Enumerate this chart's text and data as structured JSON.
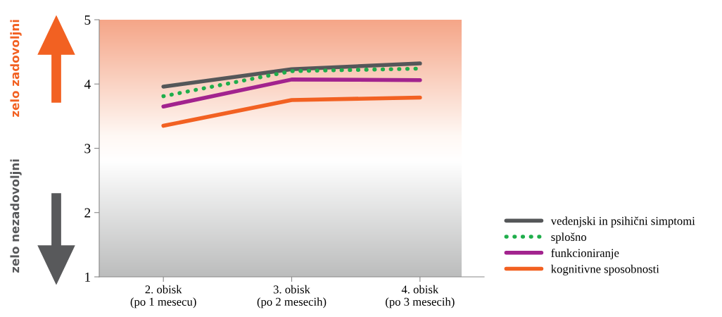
{
  "chart_data": {
    "type": "line",
    "categories": [
      "2. obisk\n(po 1 mesecu)",
      "3. obisk\n(po 2 mesecih)",
      "4. obisk\n(po 3 mesecih)"
    ],
    "series": [
      {
        "name": "vedenjski in psihični simptomi",
        "color": "#555759",
        "values": [
          3.96,
          4.23,
          4.32
        ]
      },
      {
        "name": "splošno",
        "color": "#1fae4b",
        "values": [
          3.81,
          4.2,
          4.24
        ],
        "line_style": "dotted"
      },
      {
        "name": "funkcioniranje",
        "color": "#a2238e",
        "values": [
          3.65,
          4.07,
          4.06
        ]
      },
      {
        "name": "kognitivne sposobnosti",
        "color": "#f26122",
        "values": [
          3.35,
          3.75,
          3.79
        ]
      }
    ],
    "ylim": [
      1,
      5
    ],
    "yticks": [
      1,
      2,
      3,
      4,
      5
    ],
    "grid": false,
    "legend": "right",
    "marker": "none",
    "line_style": "solid",
    "annotations": [
      "zelo zadovoljni",
      "zelo nezadovoljni"
    ]
  }
}
